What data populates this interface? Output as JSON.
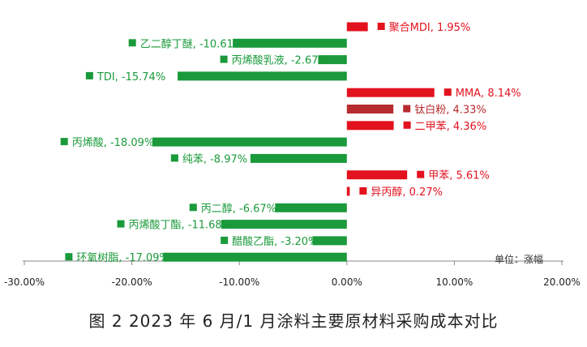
{
  "caption": "图 2  2023 年 6 月/1 月涂料主要原材料采购成本对比",
  "unit_label": "单位：涨幅",
  "colors": {
    "negative": "#1a9a3a",
    "positive": "#e3121f",
    "titanium": "#b72b2f",
    "axis": "#888888"
  },
  "chart_data": {
    "type": "bar",
    "orientation": "horizontal",
    "xlim": [
      -30,
      20
    ],
    "x_ticks": [
      "-30.00%",
      "-20.00%",
      "-10.00%",
      "0.00%",
      "10.00%",
      "20.00%"
    ],
    "x_tick_values": [
      -30,
      -20,
      -10,
      0,
      10,
      20
    ],
    "grid": false,
    "categories": [
      "聚合MDI",
      "乙二醇丁醚",
      "丙烯酸乳液",
      "TDI",
      "MMA",
      "钛白粉",
      "二甲苯",
      "丙烯酸",
      "纯苯",
      "甲苯",
      "异丙醇",
      "丙二醇",
      "丙烯酸丁酯",
      "醋酸乙酯",
      "环氧树脂"
    ],
    "values": [
      1.95,
      -10.61,
      -2.67,
      -15.74,
      8.14,
      4.33,
      4.36,
      -18.09,
      -8.97,
      5.61,
      0.27,
      -6.67,
      -11.68,
      -3.2,
      -17.09
    ],
    "labels": [
      "聚合MDI, 1.95%",
      "乙二醇丁醚, -10.61%",
      "丙烯酸乳液, -2.67%",
      "TDI, -15.74%",
      "MMA, 8.14%",
      "钛白粉, 4.33%",
      "二甲苯, 4.36%",
      "丙烯酸, -18.09%",
      "纯苯, -8.97%",
      "甲苯, 5.61%",
      "异丙醇, 0.27%",
      "丙二醇, -6.67%",
      "丙烯酸丁酯, -11.68%",
      "醋酸乙酯, -3.20%",
      "环氧树脂, -17.09%"
    ]
  }
}
